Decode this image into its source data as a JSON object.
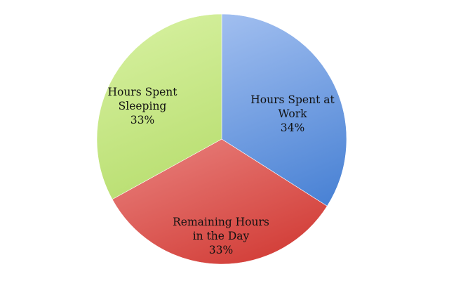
{
  "chart_data": {
    "type": "pie",
    "title": "",
    "slices": [
      {
        "label_lines": [
          "Hours Spent at",
          "Work"
        ],
        "value_label": "34%",
        "value": 34,
        "color_light": "#a9c4f2",
        "color_dark": "#3b78d0"
      },
      {
        "label_lines": [
          "Remaining Hours",
          "in the Day"
        ],
        "value_label": "33%",
        "value": 33,
        "color_light": "#f6aaa8",
        "color_dark": "#d23d37"
      },
      {
        "label_lines": [
          "Hours Spent",
          "Sleeping"
        ],
        "value_label": "33%",
        "value": 33,
        "color_light": "#d4ef9c",
        "color_dark": "#a8d456"
      }
    ],
    "start_angle_deg": 0,
    "direction": "clockwise",
    "legend": "none"
  }
}
